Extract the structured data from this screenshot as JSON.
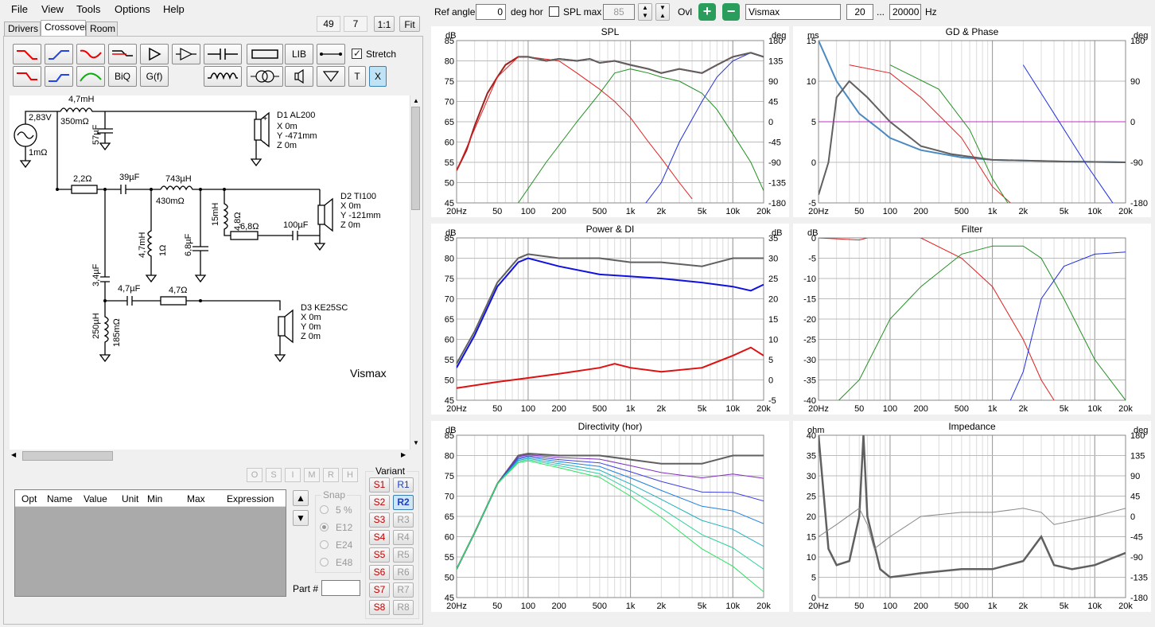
{
  "menu": {
    "file": "File",
    "view": "View",
    "tools": "Tools",
    "options": "Options",
    "help": "Help"
  },
  "left_top": {
    "count1": "49",
    "count2": "7",
    "ratio": "1:1",
    "fit": "Fit"
  },
  "tabs": {
    "drivers": "Drivers",
    "crossover": "Crossover",
    "room": "Room"
  },
  "toolbar": {
    "lib": "LIB",
    "biq": "BiQ",
    "gf": "G(f)",
    "t": "T",
    "x": "X",
    "stretch": "Stretch"
  },
  "schematic": {
    "source_v": "2,83V",
    "source_r": "1mΩ",
    "l1": "4,7mH",
    "l1r": "350mΩ",
    "c1": "57µF",
    "d1_name": "D1 AL200",
    "d1_x": "X 0m",
    "d1_y": "Y -471mm",
    "d1_z": "Z 0m",
    "r1": "2,2Ω",
    "c2": "39µF",
    "l2": "743µH",
    "l2r": "430mΩ",
    "l3": "4,7mH",
    "l3r": "1Ω",
    "c3": "6,8µF",
    "l4": "15mH",
    "l4r": "4,8Ω",
    "r2": "6,8Ω",
    "c4": "100µF",
    "d2_name": "D2 TI100",
    "d2_x": "X 0m",
    "d2_y": "Y -121mm",
    "d2_z": "Z 0m",
    "c5": "3,4µF",
    "c6": "4,7µF",
    "r3": "4,7Ω",
    "l5": "250µH",
    "l5r": "185mΩ",
    "d3_name": "D3 KE25SC",
    "d3_x": "X 0m",
    "d3_y": "Y 0m",
    "d3_z": "Z 0m",
    "project_label": "Vismax"
  },
  "opt_buttons": [
    "O",
    "S",
    "I",
    "M",
    "R",
    "H"
  ],
  "table_headers": [
    "Opt",
    "Name",
    "Value",
    "Unit",
    "Min",
    "Max",
    "Expression"
  ],
  "snap": {
    "label": "Snap",
    "options": [
      "5 %",
      "E12",
      "E24",
      "E48"
    ],
    "selected": "E12"
  },
  "part_label": "Part #",
  "variant": {
    "label": "Variant",
    "s": [
      "S1",
      "S2",
      "S3",
      "S4",
      "S5",
      "S6",
      "S7",
      "S8"
    ],
    "r": [
      "R1",
      "R2",
      "R3",
      "R4",
      "R5",
      "R6",
      "R7",
      "R8"
    ],
    "active_r": "R2"
  },
  "top_controls": {
    "ref_angle_label": "Ref angle",
    "ref_angle": "0",
    "deg_hor": "deg hor",
    "spl_max_label": "SPL max",
    "spl_max": "85",
    "ovl": "Ovl",
    "name": "Vismax",
    "f_from": "20",
    "dots": "...",
    "f_to": "20000",
    "hz": "Hz"
  },
  "charts": {
    "spl": {
      "title": "SPL",
      "left_unit": "dB",
      "right_unit": "deg",
      "left_ticks": [
        "85",
        "80",
        "75",
        "70",
        "65",
        "60",
        "55",
        "50",
        "45"
      ],
      "right_ticks": [
        "180",
        "135",
        "90",
        "45",
        "0",
        "-45",
        "-90",
        "-135",
        "-180"
      ]
    },
    "gd": {
      "title": "GD & Phase",
      "left_unit": "ms",
      "right_unit": "deg",
      "left_ticks": [
        "15",
        "10",
        "5",
        "0",
        "-5"
      ],
      "right_ticks": [
        "180",
        "90",
        "0",
        "-90",
        "-180"
      ]
    },
    "power": {
      "title": "Power & DI",
      "left_unit": "dB",
      "right_unit": "dB",
      "left_ticks": [
        "85",
        "80",
        "75",
        "70",
        "65",
        "60",
        "55",
        "50",
        "45"
      ],
      "right_ticks": [
        "35",
        "30",
        "25",
        "20",
        "15",
        "10",
        "5",
        "0",
        "-5"
      ]
    },
    "filter": {
      "title": "Filter",
      "left_unit": "dB",
      "left_ticks": [
        "0",
        "-5",
        "-10",
        "-15",
        "-20",
        "-25",
        "-30",
        "-35",
        "-40"
      ]
    },
    "directivity": {
      "title": "Directivity (hor)",
      "left_unit": "dB",
      "left_ticks": [
        "85",
        "80",
        "75",
        "70",
        "65",
        "60",
        "55",
        "50",
        "45"
      ]
    },
    "impedance": {
      "title": "Impedance",
      "left_unit": "ohm",
      "right_unit": "deg",
      "left_ticks": [
        "40",
        "35",
        "30",
        "25",
        "20",
        "15",
        "10",
        "5",
        "0"
      ],
      "right_ticks": [
        "180",
        "135",
        "90",
        "45",
        "0",
        "-45",
        "-90",
        "-135",
        "-180"
      ]
    },
    "x_ticks": [
      "20Hz",
      "50",
      "100",
      "200",
      "500",
      "1k",
      "2k",
      "5k",
      "10k",
      "20k"
    ]
  },
  "colors": {
    "woofer": "#e02020",
    "mid": "#209020",
    "tweeter": "#2030e0",
    "total": "#606060",
    "gd": "#4a8ac0",
    "power": "#1010e0",
    "di": "#e01010"
  }
}
